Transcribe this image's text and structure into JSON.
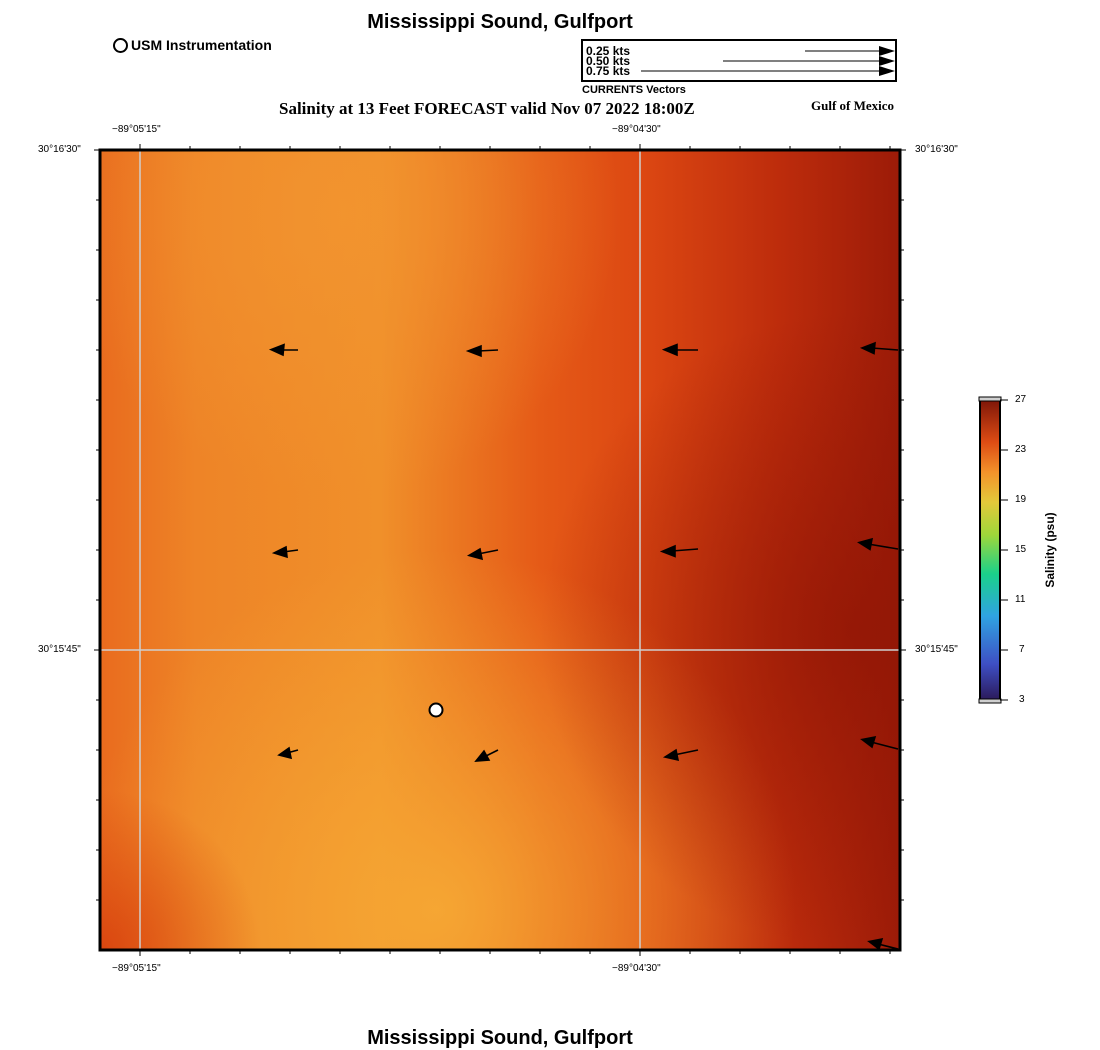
{
  "header": {
    "title": "Mississippi Sound, Gulfport",
    "subtitle": "Salinity at 13 Feet FORECAST valid Nov 07 2022 18:00Z",
    "region_label": "Gulf of Mexico"
  },
  "footer": {
    "title": "Mississippi Sound, Gulfport"
  },
  "station_legend": {
    "label": "USM Instrumentation"
  },
  "vector_legend": {
    "caption": "CURRENTS Vectors",
    "scales": [
      {
        "label": "0.25 kts",
        "speed_kts": 0.25
      },
      {
        "label": "0.50 kts",
        "speed_kts": 0.5
      },
      {
        "label": "0.75 kts",
        "speed_kts": 0.75
      }
    ]
  },
  "axes": {
    "top_lon_labels": [
      "−89°05'15\"",
      "−89°04'30\""
    ],
    "bottom_lon_labels": [
      "−89°05'15\"",
      "−89°04'30\""
    ],
    "left_lat_labels": [
      "30°16'30\"",
      "30°15'45\""
    ],
    "right_lat_labels": [
      "30°16'30\"",
      "30°15'45\""
    ]
  },
  "colorbar": {
    "title": "Salinity (psu)",
    "min": 3,
    "max": 27,
    "ticks": [
      "3",
      "7",
      "11",
      "15",
      "19",
      "23",
      "27"
    ]
  },
  "colors": {
    "salinity_low": "#2b1a5a",
    "salinity_mid": "#e3c93a",
    "salinity_high": "#7e1608",
    "map_orange": "#ef8a26",
    "map_red": "#a21c0a"
  }
}
